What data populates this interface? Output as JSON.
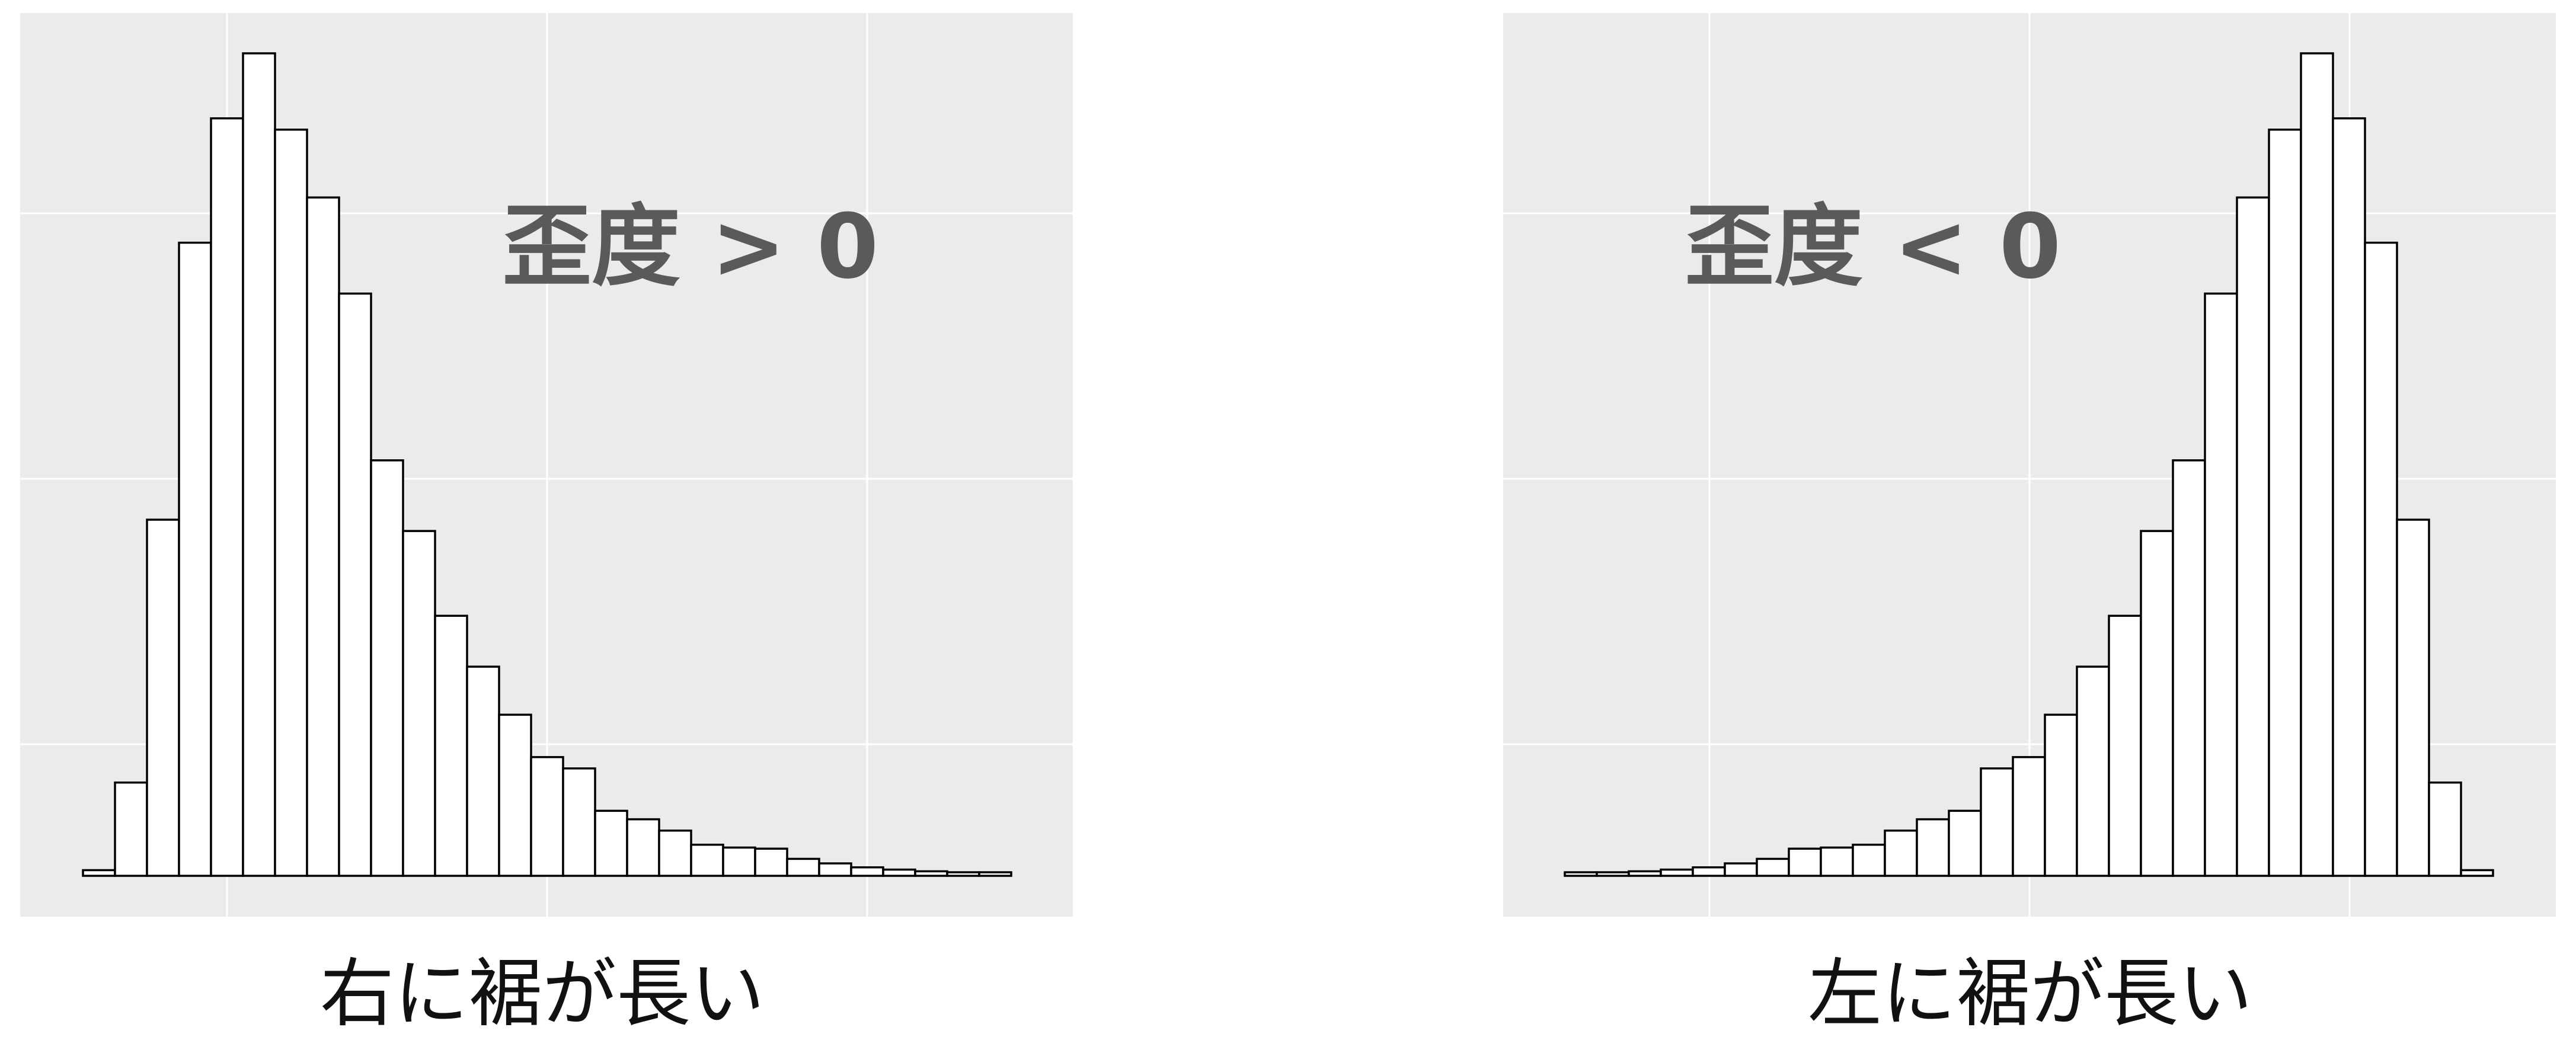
{
  "chart_data": [
    {
      "type": "bar",
      "title": "",
      "xlabel": "",
      "ylabel": "",
      "annotation": "歪度 > 0",
      "caption": "右に裾が長い",
      "grid": true,
      "panel_color": "#ebebeb",
      "grid_color": "#ffffff",
      "bar_fill": "#ffffff",
      "bar_stroke": "#000000",
      "ylim": [
        -0.5,
        15.5
      ],
      "values": [
        0.1,
        1.65,
        6.3,
        11.2,
        13.4,
        14.55,
        13.2,
        12.0,
        10.3,
        7.35,
        6.1,
        4.6,
        3.7,
        2.85,
        2.1,
        1.9,
        1.15,
        1.0,
        0.8,
        0.55,
        0.5,
        0.48,
        0.3,
        0.22,
        0.15,
        0.11,
        0.08,
        0.06,
        0.05
      ]
    },
    {
      "type": "bar",
      "title": "",
      "xlabel": "",
      "ylabel": "",
      "annotation": "歪度 < 0",
      "caption": "左に裾が長い",
      "grid": true,
      "panel_color": "#ebebeb",
      "grid_color": "#ffffff",
      "bar_fill": "#ffffff",
      "bar_stroke": "#000000",
      "ylim": [
        -0.5,
        15.5
      ],
      "values": [
        0.05,
        0.06,
        0.08,
        0.11,
        0.15,
        0.22,
        0.3,
        0.48,
        0.5,
        0.55,
        0.8,
        1.0,
        1.15,
        1.9,
        2.1,
        2.85,
        3.7,
        4.6,
        6.1,
        7.35,
        10.3,
        12.0,
        13.2,
        14.55,
        13.4,
        11.2,
        6.3,
        1.65,
        0.1
      ]
    }
  ]
}
